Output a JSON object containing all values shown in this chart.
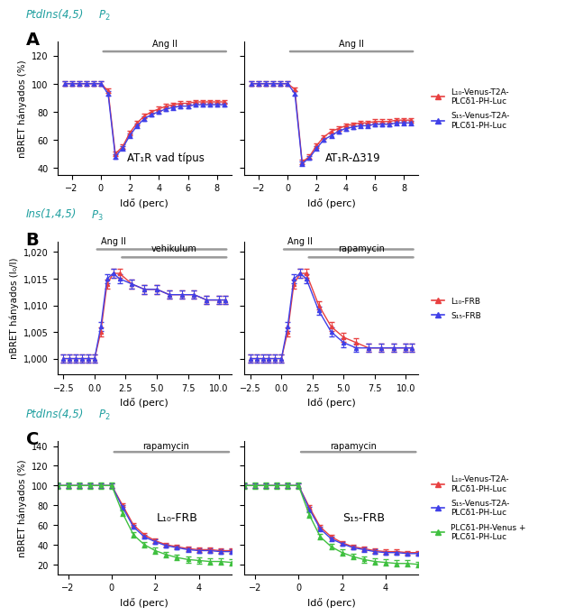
{
  "panel_A_left_label": "AT₁R vad típus",
  "panel_A_right_label": "AT₁R-Δ319",
  "panel_C_left_label": "L₁₀-FRB",
  "panel_C_right_label": "S₁₅-FRB",
  "color_red": "#e84040",
  "color_blue": "#4040e8",
  "color_green": "#40c040",
  "ang_ii_bar_color": "#999999",
  "xlabel": "Idő (perc)",
  "ylabel_pct": "nBRET hányados (%)",
  "ylabel_ratio": "nBRET hányados (I₀/I)",
  "legend_A": [
    "L₁₀-Venus-T2A-\nPLCδ1-PH-Luc",
    "S₁₅-Venus-T2A-\nPLCδ1-PH-Luc"
  ],
  "legend_B": [
    "L₁₀-FRB",
    "S₁₅-FRB"
  ],
  "legend_C": [
    "L₁₀-Venus-T2A-\nPLCδ1-PH-Luc",
    "S₁₅-Venus-T2A-\nPLCδ1-PH-Luc",
    "PLCδ1-PH-Venus +\nPLCδ1-PH-Luc"
  ],
  "A_xlim": [
    -3,
    9
  ],
  "A_ylim": [
    35,
    130
  ],
  "A_yticks": [
    40,
    60,
    80,
    100,
    120
  ],
  "B_xlim": [
    -3,
    11
  ],
  "B_ylim": [
    0.997,
    1.022
  ],
  "B_yticks": [
    1.0,
    1.005,
    1.01,
    1.015,
    1.02
  ],
  "C_xlim": [
    -2.5,
    5.5
  ],
  "C_ylim": [
    10,
    145
  ],
  "C_yticks": [
    20,
    40,
    60,
    80,
    100,
    120,
    140
  ],
  "teal": "#20a0a0",
  "label_A": "A",
  "label_B": "B",
  "label_C": "C",
  "section_A": "PtdIns(4,5)",
  "section_A_sub": "$P_2$",
  "section_B": "Ins(1,4,5)",
  "section_B_sub": "$P_3$",
  "section_C": "PtdIns(4,5)",
  "section_C_sub": "$P_2$"
}
